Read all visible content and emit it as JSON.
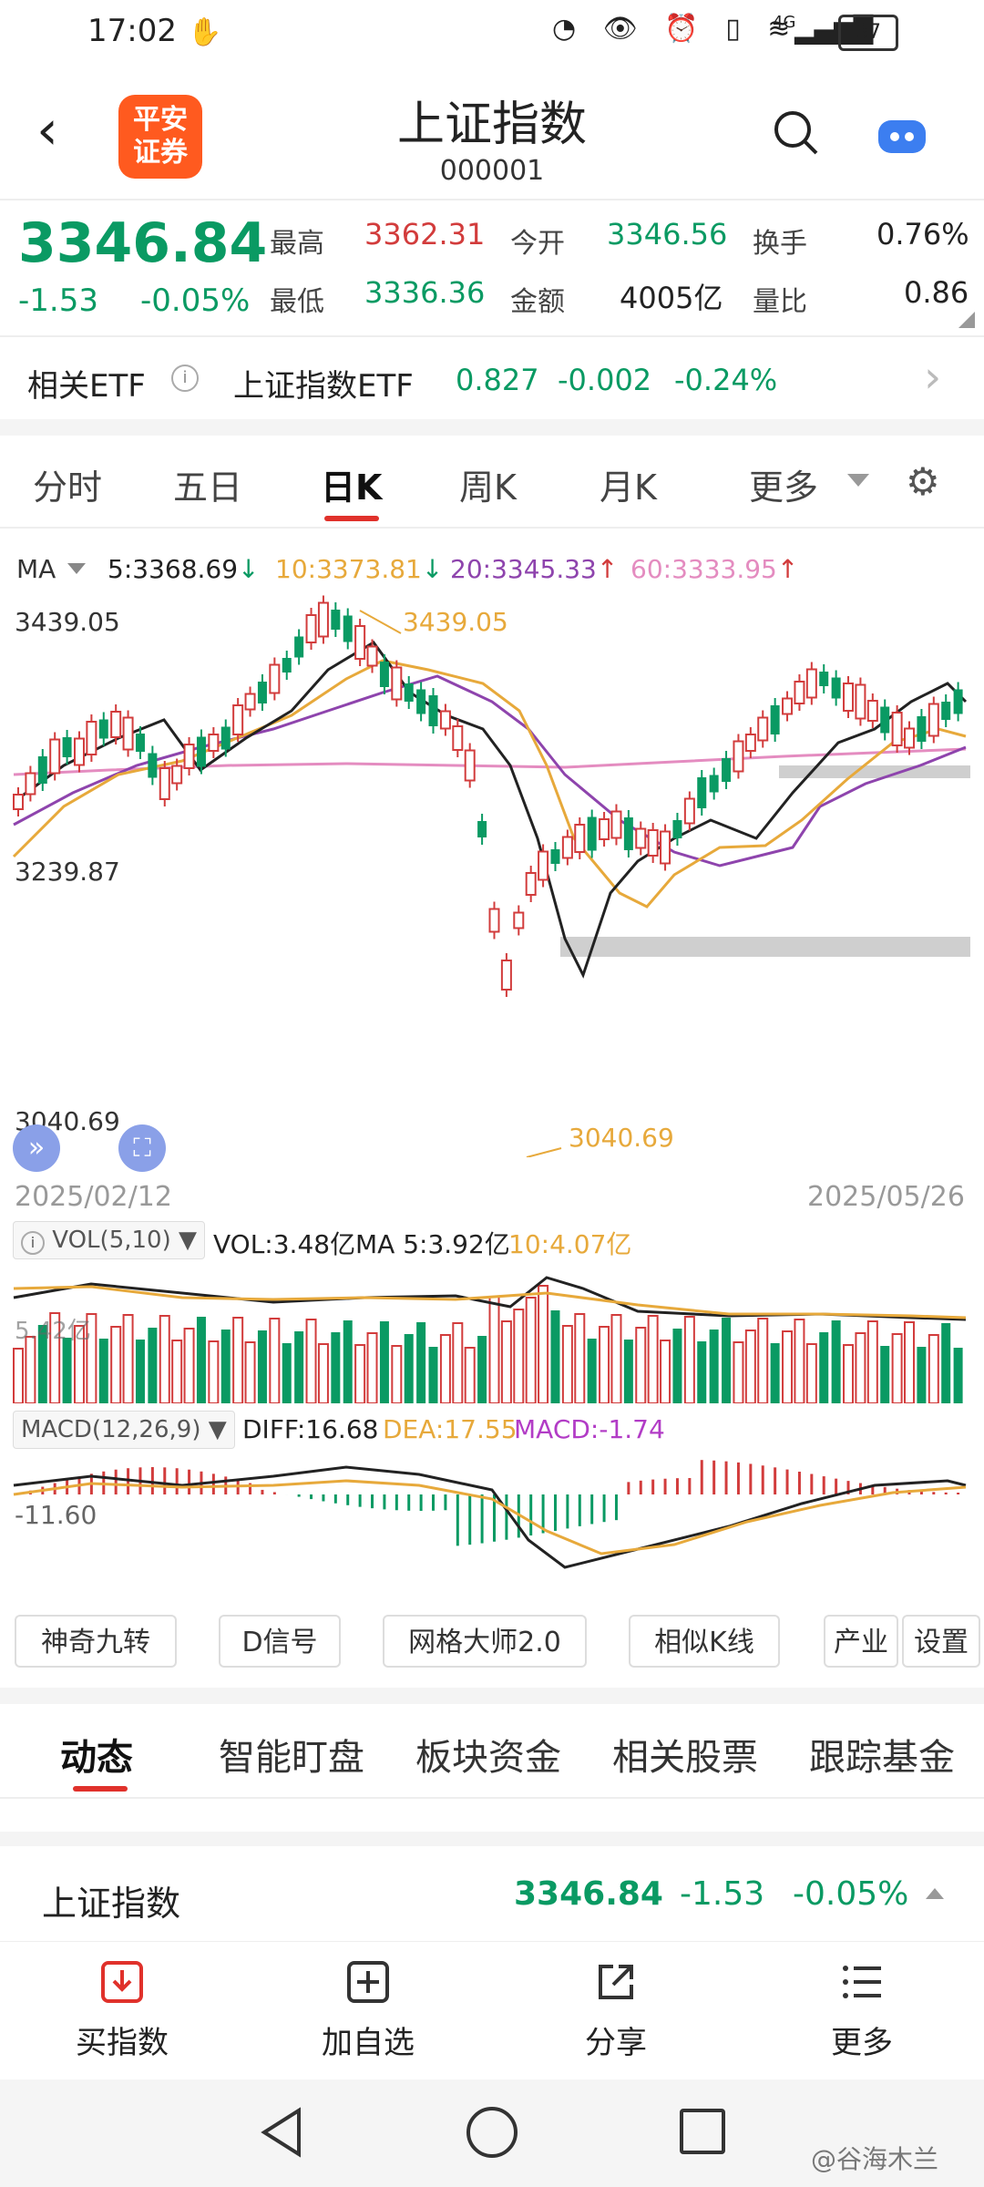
{
  "status": {
    "time": "17:02",
    "battery": "37",
    "network": "4G"
  },
  "header": {
    "title": "上证指数",
    "code": "000001",
    "logo_text": "平安\n证券"
  },
  "quote": {
    "price": "3346.84",
    "change": "-1.53",
    "change_pct": "-0.05%",
    "high_label": "最高",
    "high": "3362.31",
    "low_label": "最低",
    "low": "3336.36",
    "open_label": "今开",
    "open": "3346.56",
    "amount_label": "金额",
    "amount": "4005亿",
    "turnover_label": "换手",
    "turnover": "0.76%",
    "volratio_label": "量比",
    "volratio": "0.86"
  },
  "etf": {
    "label": "相关ETF",
    "name": "上证指数ETF",
    "price": "0.827",
    "change": "-0.002",
    "pct": "-0.24%"
  },
  "tabs": [
    "分时",
    "五日",
    "日K",
    "周K",
    "月K",
    "更多"
  ],
  "ma_legend": {
    "title": "MA",
    "ma5": "5:3368.69",
    "ma10": "10:3373.81",
    "ma20": "20:3345.33",
    "ma60": "60:3333.95"
  },
  "price_axis": {
    "top": "3439.05",
    "mid": "3239.87",
    "bottom": "3040.69"
  },
  "annotations": {
    "high": "3439.05",
    "low": "3040.69"
  },
  "dates": {
    "start": "2025/02/12",
    "end": "2025/05/26"
  },
  "vol_legend": {
    "title": "VOL(5,10)",
    "vol": "VOL:3.48亿",
    "ma5": "MA 5:3.92亿",
    "ma10": "10:4.07亿",
    "axis": "5.42亿"
  },
  "macd_legend": {
    "title": "MACD(12,26,9)",
    "diff": "DIFF:16.68",
    "dea": "DEA:17.55",
    "macd": "MACD:-1.74",
    "axis": "-11.60"
  },
  "tools": [
    "神奇九转",
    "D信号",
    "网格大师2.0",
    "相似K线",
    "产业",
    "设置"
  ],
  "subtabs": [
    "动态",
    "智能盯盘",
    "板块资金",
    "相关股票",
    "跟踪基金"
  ],
  "ticker_row": {
    "name": "上证指数",
    "price": "3346.84",
    "change": "-1.53",
    "pct": "-0.05%"
  },
  "bottom_nav": [
    {
      "icon": "buy-index-icon",
      "label": "买指数"
    },
    {
      "icon": "add-watch-icon",
      "label": "加自选"
    },
    {
      "icon": "share-icon",
      "label": "分享"
    },
    {
      "icon": "more-menu-icon",
      "label": "更多"
    }
  ],
  "watermark": "@谷海木兰",
  "colors": {
    "up": "#d23c3c",
    "down": "#0a9a63",
    "ma5": "#222222",
    "ma10": "#e7a93b",
    "ma20": "#8e44ad",
    "ma60": "#e48cc0",
    "accent": "#e0312b"
  }
}
